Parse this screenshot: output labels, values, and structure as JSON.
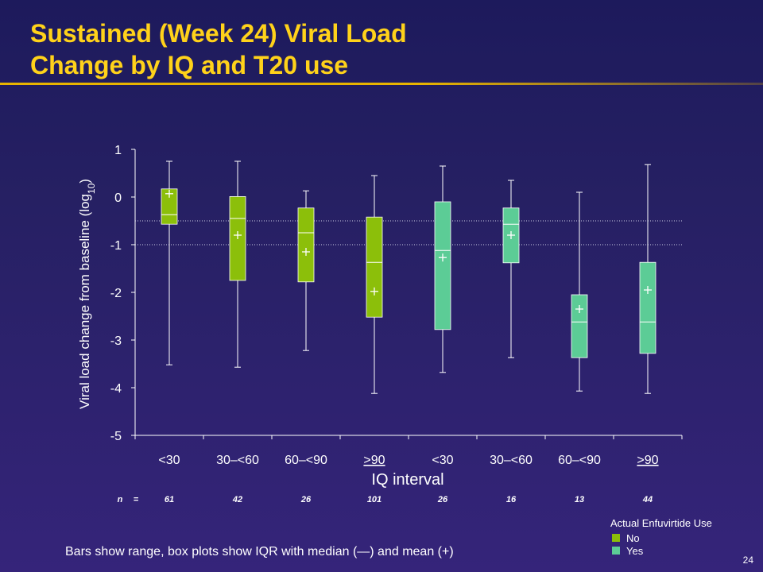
{
  "slide": {
    "title_line1": "Sustained (Week 24) Viral Load",
    "title_line2": "Change by IQ and T20 use",
    "footnote": "Bars show range, box plots show IQR with median (—) and mean (+)",
    "page_number": "24"
  },
  "legend": {
    "title": "Actual Enfuvirtide Use",
    "items": [
      {
        "label": "No",
        "color": "#8cbf0a"
      },
      {
        "label": "Yes",
        "color": "#5ccc96"
      }
    ]
  },
  "n_row": {
    "label": "n",
    "equals": "=",
    "values": [
      "61",
      "42",
      "26",
      "101",
      "26",
      "16",
      "13",
      "44"
    ]
  },
  "chart_data": {
    "type": "boxplot",
    "ylabel_main": "Viral load change from baseline (log",
    "ylabel_sub": "10",
    "ylabel_close": ")",
    "xlabel": "IQ interval",
    "ylim": [
      -5,
      1
    ],
    "yticks": [
      1,
      0,
      -1,
      -2,
      -3,
      -4,
      -5
    ],
    "reference_lines": [
      -0.5,
      -1.0
    ],
    "categories": [
      "<30",
      "30–<60",
      "60–<90",
      ">90",
      "<30",
      "30–<60",
      "60–<90",
      ">90"
    ],
    "groups": [
      {
        "t20": "No",
        "min": -3.52,
        "q1": -0.57,
        "median": -0.37,
        "q3": 0.17,
        "max": 0.75,
        "mean": 0.07
      },
      {
        "t20": "No",
        "min": -3.57,
        "q1": -1.75,
        "median": -0.45,
        "q3": 0.01,
        "max": 0.75,
        "mean": -0.8
      },
      {
        "t20": "No",
        "min": -3.22,
        "q1": -1.78,
        "median": -0.75,
        "q3": -0.23,
        "max": 0.13,
        "mean": -1.15
      },
      {
        "t20": "No",
        "min": -4.12,
        "q1": -2.52,
        "median": -1.37,
        "q3": -0.42,
        "max": 0.45,
        "mean": -1.98
      },
      {
        "t20": "Yes",
        "min": -3.68,
        "q1": -2.78,
        "median": -1.12,
        "q3": -0.1,
        "max": 0.65,
        "mean": -1.27
      },
      {
        "t20": "Yes",
        "min": -3.37,
        "q1": -1.38,
        "median": -0.57,
        "q3": -0.23,
        "max": 0.35,
        "mean": -0.8
      },
      {
        "t20": "Yes",
        "min": -4.07,
        "q1": -3.37,
        "median": -2.62,
        "q3": -2.05,
        "max": 0.1,
        "mean": -2.35
      },
      {
        "t20": "Yes",
        "min": -4.12,
        "q1": -3.28,
        "median": -2.62,
        "q3": -1.37,
        "max": 0.68,
        "mean": -1.95
      }
    ]
  }
}
